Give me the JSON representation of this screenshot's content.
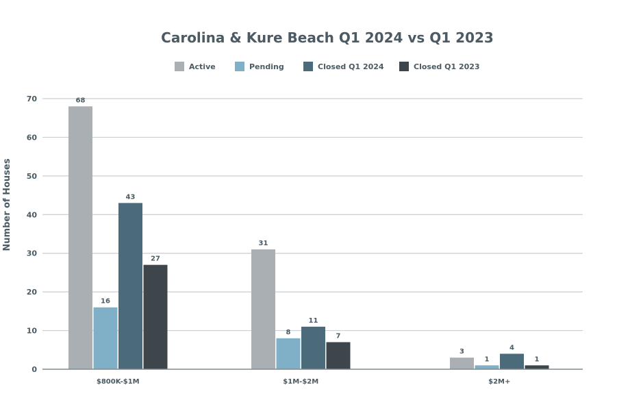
{
  "chart_data": {
    "type": "bar",
    "title": "Carolina & Kure Beach Q1 2024 vs Q1 2023",
    "xlabel": "",
    "ylabel": "Number of Houses",
    "ylim": [
      0,
      70
    ],
    "yticks": [
      0,
      10,
      20,
      30,
      40,
      50,
      60,
      70
    ],
    "grid": true,
    "legend_position": "top",
    "categories": [
      "$800K-$1M",
      "$1M-$2M",
      "$2M+"
    ],
    "series": [
      {
        "name": "Active",
        "color": "#a9afb3",
        "values": [
          68,
          31,
          3
        ]
      },
      {
        "name": "Pending",
        "color": "#7fb0c7",
        "values": [
          16,
          8,
          1
        ]
      },
      {
        "name": "Closed Q1 2024",
        "color": "#4c6b7a",
        "values": [
          43,
          11,
          4
        ]
      },
      {
        "name": "Closed Q1 2023",
        "color": "#3e464c",
        "values": [
          27,
          7,
          1
        ]
      }
    ]
  }
}
